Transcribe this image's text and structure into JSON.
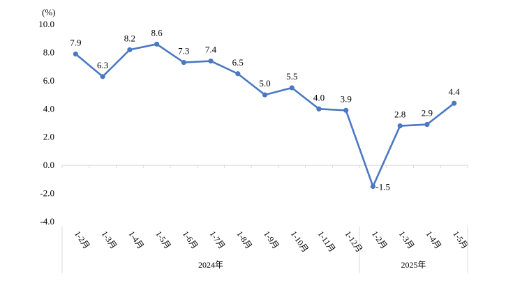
{
  "chart_data": {
    "type": "line",
    "ylabel": "(%)",
    "ylim": [
      -4.0,
      10.0
    ],
    "yticks": [
      "10.0",
      "8.0",
      "6.0",
      "4.0",
      "2.0",
      "0.0",
      "-2.0",
      "-4.0"
    ],
    "categories": [
      "1-2月",
      "1-3月",
      "1-4月",
      "1-5月",
      "1-6月",
      "1-7月",
      "1-8月",
      "1-9月",
      "1-10月",
      "1-11月",
      "1-12月",
      "1-2月",
      "1-3月",
      "1-4月",
      "1-5月"
    ],
    "series": [
      {
        "values": [
          7.9,
          6.3,
          8.2,
          8.6,
          7.3,
          7.4,
          6.5,
          5.0,
          5.5,
          4.0,
          3.9,
          -1.5,
          2.8,
          2.9,
          4.4
        ],
        "labels": [
          "7.9",
          "6.3",
          "8.2",
          "8.6",
          "7.3",
          "7.4",
          "6.5",
          "5.0",
          "5.5",
          "4.0",
          "3.9",
          "-1.5",
          "2.8",
          "2.9",
          "4.4"
        ]
      }
    ],
    "groups": [
      {
        "label": "2024年",
        "count": 11
      },
      {
        "label": "2025年",
        "count": 4
      }
    ],
    "line_color": "#4a78c2",
    "grid": false
  }
}
